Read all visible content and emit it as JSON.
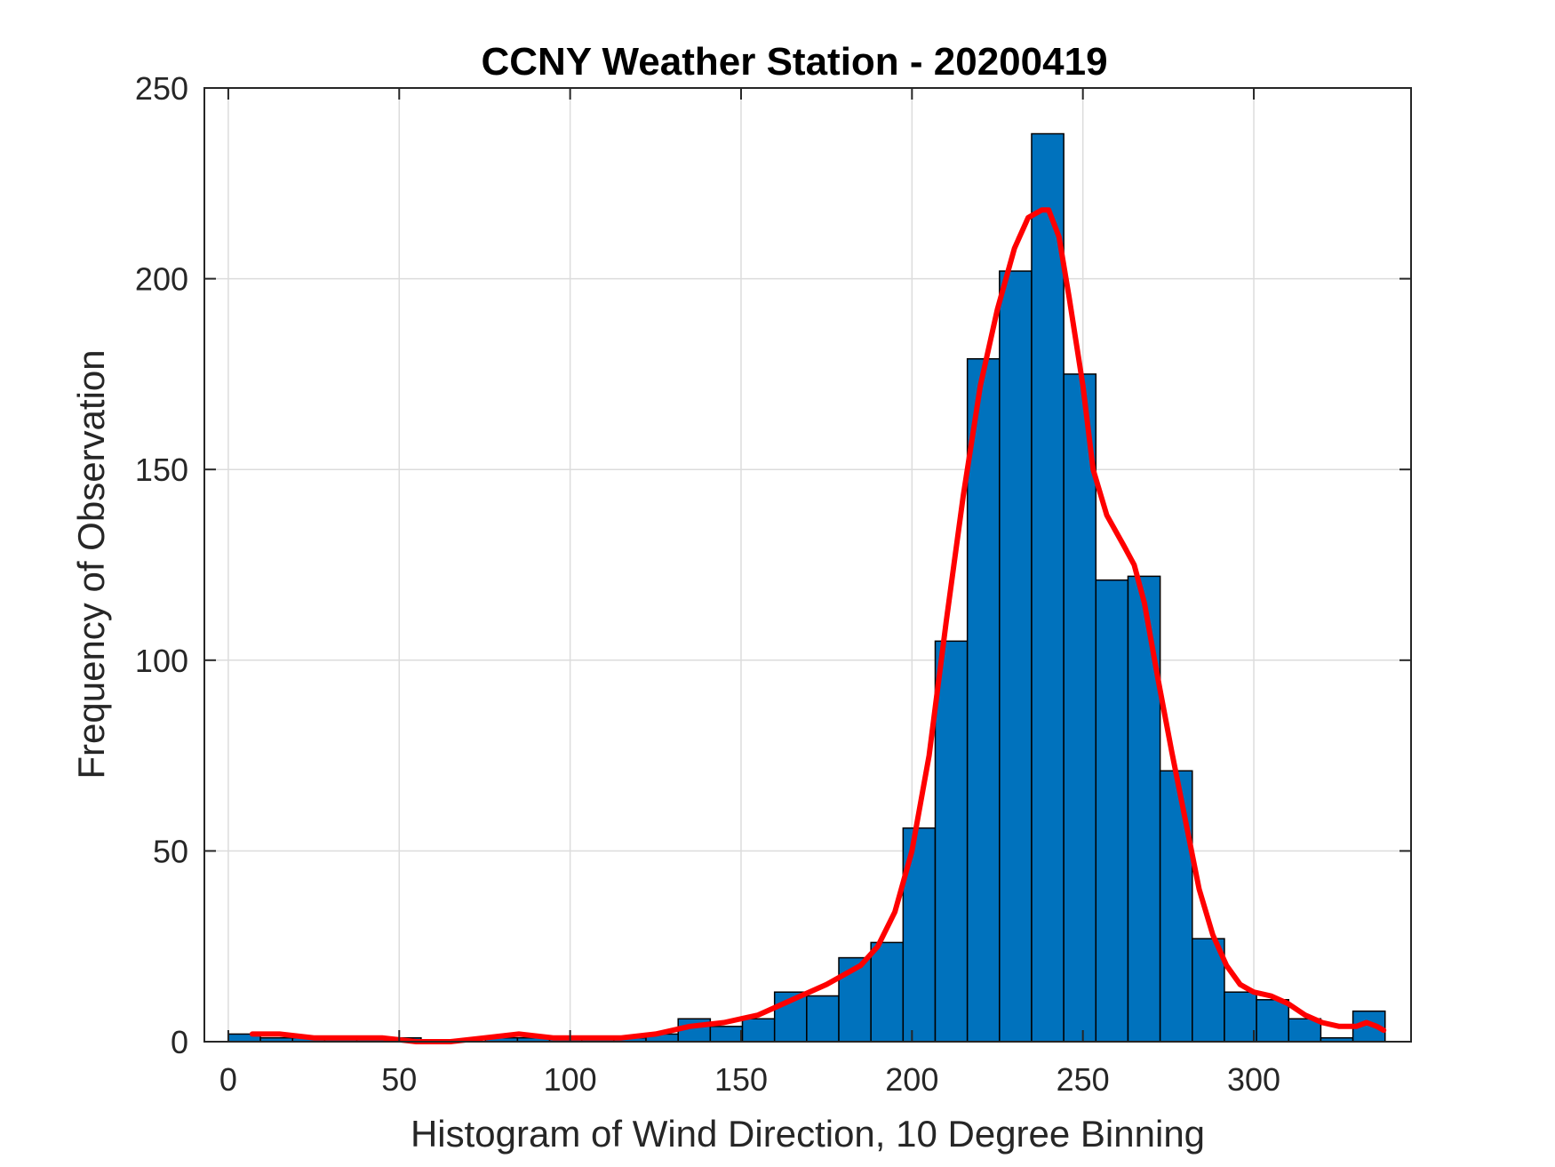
{
  "chart_data": {
    "type": "bar",
    "title": "CCNY Weather Station - 20200419",
    "xlabel": "Histogram of Wind Direction, 10 Degree Binning",
    "ylabel": "Frequency of Observation",
    "xlim": [
      -7,
      346
    ],
    "ylim": [
      0,
      250
    ],
    "xticks": [
      0,
      50,
      100,
      150,
      200,
      250,
      300
    ],
    "yticks": [
      0,
      50,
      100,
      150,
      200,
      250
    ],
    "grid": true,
    "bin_width": 9.4,
    "bins": [
      {
        "x0": 0,
        "value": 2
      },
      {
        "x0": 9.4,
        "value": 1
      },
      {
        "x0": 18.8,
        "value": 1
      },
      {
        "x0": 28.2,
        "value": 1
      },
      {
        "x0": 37.6,
        "value": 1
      },
      {
        "x0": 47.0,
        "value": 1
      },
      {
        "x0": 56.4,
        "value": 0
      },
      {
        "x0": 65.8,
        "value": 0
      },
      {
        "x0": 75.2,
        "value": 1
      },
      {
        "x0": 84.6,
        "value": 1
      },
      {
        "x0": 94.0,
        "value": 1
      },
      {
        "x0": 103.4,
        "value": 1
      },
      {
        "x0": 112.8,
        "value": 1
      },
      {
        "x0": 122.2,
        "value": 2
      },
      {
        "x0": 131.6,
        "value": 6
      },
      {
        "x0": 141.0,
        "value": 4
      },
      {
        "x0": 150.4,
        "value": 6
      },
      {
        "x0": 159.8,
        "value": 13
      },
      {
        "x0": 169.2,
        "value": 12
      },
      {
        "x0": 178.6,
        "value": 22
      },
      {
        "x0": 188.0,
        "value": 26
      },
      {
        "x0": 197.4,
        "value": 56
      },
      {
        "x0": 206.8,
        "value": 105
      },
      {
        "x0": 216.2,
        "value": 179
      },
      {
        "x0": 225.6,
        "value": 202
      },
      {
        "x0": 235.0,
        "value": 238
      },
      {
        "x0": 244.4,
        "value": 175
      },
      {
        "x0": 253.8,
        "value": 121
      },
      {
        "x0": 263.2,
        "value": 122
      },
      {
        "x0": 272.6,
        "value": 71
      },
      {
        "x0": 282.0,
        "value": 27
      },
      {
        "x0": 291.4,
        "value": 13
      },
      {
        "x0": 300.8,
        "value": 11
      },
      {
        "x0": 310.2,
        "value": 6
      },
      {
        "x0": 319.6,
        "value": 1
      },
      {
        "x0": 329.0,
        "value": 8
      }
    ],
    "series": [
      {
        "name": "smoothed density fit",
        "color": "#ff0000",
        "points": [
          [
            7,
            2
          ],
          [
            15,
            2
          ],
          [
            25,
            1
          ],
          [
            35,
            1
          ],
          [
            45,
            1
          ],
          [
            55,
            0
          ],
          [
            65,
            0
          ],
          [
            75,
            1
          ],
          [
            85,
            2
          ],
          [
            95,
            1
          ],
          [
            105,
            1
          ],
          [
            115,
            1
          ],
          [
            125,
            2
          ],
          [
            135,
            4
          ],
          [
            145,
            5
          ],
          [
            155,
            7
          ],
          [
            165,
            11
          ],
          [
            175,
            15
          ],
          [
            185,
            20
          ],
          [
            190,
            25
          ],
          [
            195,
            34
          ],
          [
            200,
            50
          ],
          [
            205,
            75
          ],
          [
            210,
            110
          ],
          [
            215,
            143
          ],
          [
            220,
            172
          ],
          [
            225,
            192
          ],
          [
            230,
            208
          ],
          [
            234,
            216
          ],
          [
            238,
            218
          ],
          [
            240,
            218
          ],
          [
            243,
            211
          ],
          [
            246,
            195
          ],
          [
            250,
            172
          ],
          [
            253,
            150
          ],
          [
            257,
            138
          ],
          [
            262,
            130
          ],
          [
            265,
            125
          ],
          [
            268,
            115
          ],
          [
            272,
            95
          ],
          [
            276,
            76
          ],
          [
            280,
            58
          ],
          [
            284,
            40
          ],
          [
            288,
            28
          ],
          [
            292,
            20
          ],
          [
            296,
            15
          ],
          [
            300,
            13
          ],
          [
            305,
            12
          ],
          [
            310,
            10
          ],
          [
            315,
            7
          ],
          [
            320,
            5
          ],
          [
            325,
            4
          ],
          [
            330,
            4
          ],
          [
            333,
            5
          ],
          [
            336,
            4
          ],
          [
            338,
            3
          ]
        ]
      }
    ]
  },
  "colors": {
    "bar_fill": "#0072BD",
    "curve": "#ff0000"
  }
}
